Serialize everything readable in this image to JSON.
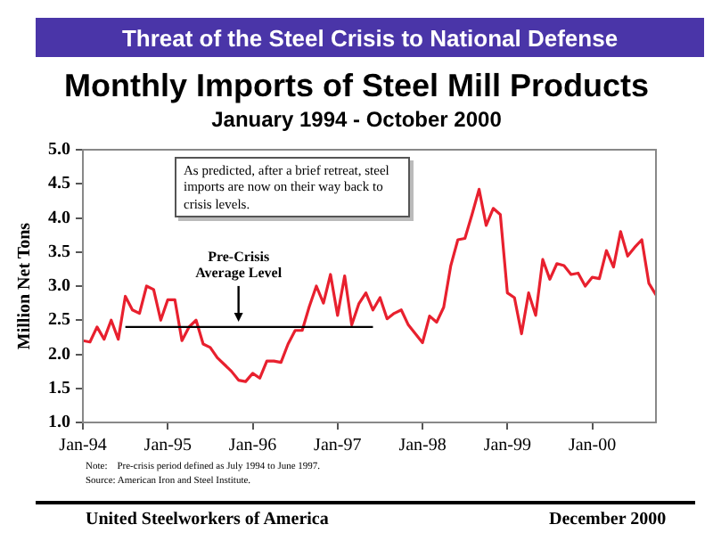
{
  "chart_data": {
    "type": "line",
    "title": "Monthly Imports of Steel Mill Products",
    "subtitle": "January 1994 - October 2000",
    "ylabel": "Million Net Tons",
    "x": [
      "1994-01",
      "1994-02",
      "1994-03",
      "1994-04",
      "1994-05",
      "1994-06",
      "1994-07",
      "1994-08",
      "1994-09",
      "1994-10",
      "1994-11",
      "1994-12",
      "1995-01",
      "1995-02",
      "1995-03",
      "1995-04",
      "1995-05",
      "1995-06",
      "1995-07",
      "1995-08",
      "1995-09",
      "1995-10",
      "1995-11",
      "1995-12",
      "1996-01",
      "1996-02",
      "1996-03",
      "1996-04",
      "1996-05",
      "1996-06",
      "1996-07",
      "1996-08",
      "1996-09",
      "1996-10",
      "1996-11",
      "1996-12",
      "1997-01",
      "1997-02",
      "1997-03",
      "1997-04",
      "1997-05",
      "1997-06",
      "1997-07",
      "1997-08",
      "1997-09",
      "1997-10",
      "1997-11",
      "1998-01",
      "1998-02",
      "1998-03",
      "1998-04",
      "1998-05",
      "1998-06",
      "1998-07",
      "1998-08",
      "1998-09",
      "1998-10",
      "1998-11",
      "1998-12",
      "1999-01",
      "1999-02",
      "1999-03",
      "1999-04",
      "1999-05",
      "1999-06",
      "1999-07",
      "1999-08",
      "1999-09",
      "1999-10",
      "1999-11",
      "1999-12",
      "2000-01",
      "2000-02",
      "2000-03",
      "2000-04",
      "2000-05",
      "2000-06",
      "2000-07",
      "2000-08",
      "2000-09",
      "2000-10"
    ],
    "series": [
      {
        "type": "line",
        "color": "#000000",
        "x": [
          "1994-07",
          "1997-06"
        ],
        "values": [
          2.4,
          2.4
        ]
      },
      {
        "color": "#e8202e",
        "values": [
          2.2,
          2.18,
          2.4,
          2.22,
          2.5,
          2.22,
          2.85,
          2.65,
          2.6,
          3.0,
          2.95,
          2.5,
          2.8,
          2.8,
          2.2,
          2.4,
          2.5,
          2.15,
          2.1,
          1.95,
          1.85,
          1.75,
          1.62,
          1.6,
          1.72,
          1.65,
          1.9,
          1.9,
          1.88,
          2.15,
          2.35,
          2.35,
          2.7,
          3.0,
          2.75,
          3.17,
          2.57,
          3.15,
          2.43,
          2.74,
          2.9,
          2.65,
          2.83,
          2.52,
          2.6,
          2.65,
          2.43,
          2.17,
          2.56,
          2.47,
          2.69,
          3.3,
          3.68,
          3.7,
          4.05,
          4.42,
          3.89,
          4.14,
          4.05,
          2.9,
          2.83,
          2.3,
          2.9,
          2.57,
          3.39,
          3.1,
          3.33,
          3.3,
          3.17,
          3.19,
          3.0,
          3.13,
          3.11,
          3.52,
          3.28,
          3.8,
          3.44,
          3.57,
          3.68,
          3.04,
          2.87
        ]
      }
    ],
    "xlim": [
      "1994-01",
      "2000-10"
    ],
    "xticks": [
      {
        "value": "1994-01",
        "label": "Jan-94"
      },
      {
        "value": "1995-01",
        "label": "Jan-95"
      },
      {
        "value": "1996-01",
        "label": "Jan-96"
      },
      {
        "value": "1997-01",
        "label": "Jan-97"
      },
      {
        "value": "1998-01",
        "label": "Jan-98"
      },
      {
        "value": "1999-01",
        "label": "Jan-99"
      },
      {
        "value": "2000-01",
        "label": "Jan-00"
      }
    ],
    "ylim": [
      1,
      5
    ],
    "yticks": [
      {
        "value": 1,
        "label": "1.0"
      },
      {
        "value": 1.5,
        "label": "1.5"
      },
      {
        "value": 2,
        "label": "2.0"
      },
      {
        "value": 2.5,
        "label": "2.5"
      },
      {
        "value": 3,
        "label": "3.0"
      },
      {
        "value": 3.5,
        "label": "3.5"
      },
      {
        "value": 4,
        "label": "4.0"
      },
      {
        "value": 4.5,
        "label": "4.5"
      },
      {
        "value": 5,
        "label": "5.0"
      }
    ],
    "annotations": [
      "Threat of the Steel Crisis to National Defense",
      "As predicted, after a brief retreat, steel imports are now on their way back to crisis levels.",
      "Note:    Pre-crisis period defined as July 1994 to June 1997.",
      "Source: American Iron and Steel Institute.",
      "United Steelworkers of America",
      "December 2000",
      {
        "text": "Pre-Crisis\nAverage Level",
        "x": "1995-11",
        "y": 2.4
      }
    ],
    "grid": false,
    "legend": false,
    "marker": "none",
    "line_style": "solid"
  }
}
